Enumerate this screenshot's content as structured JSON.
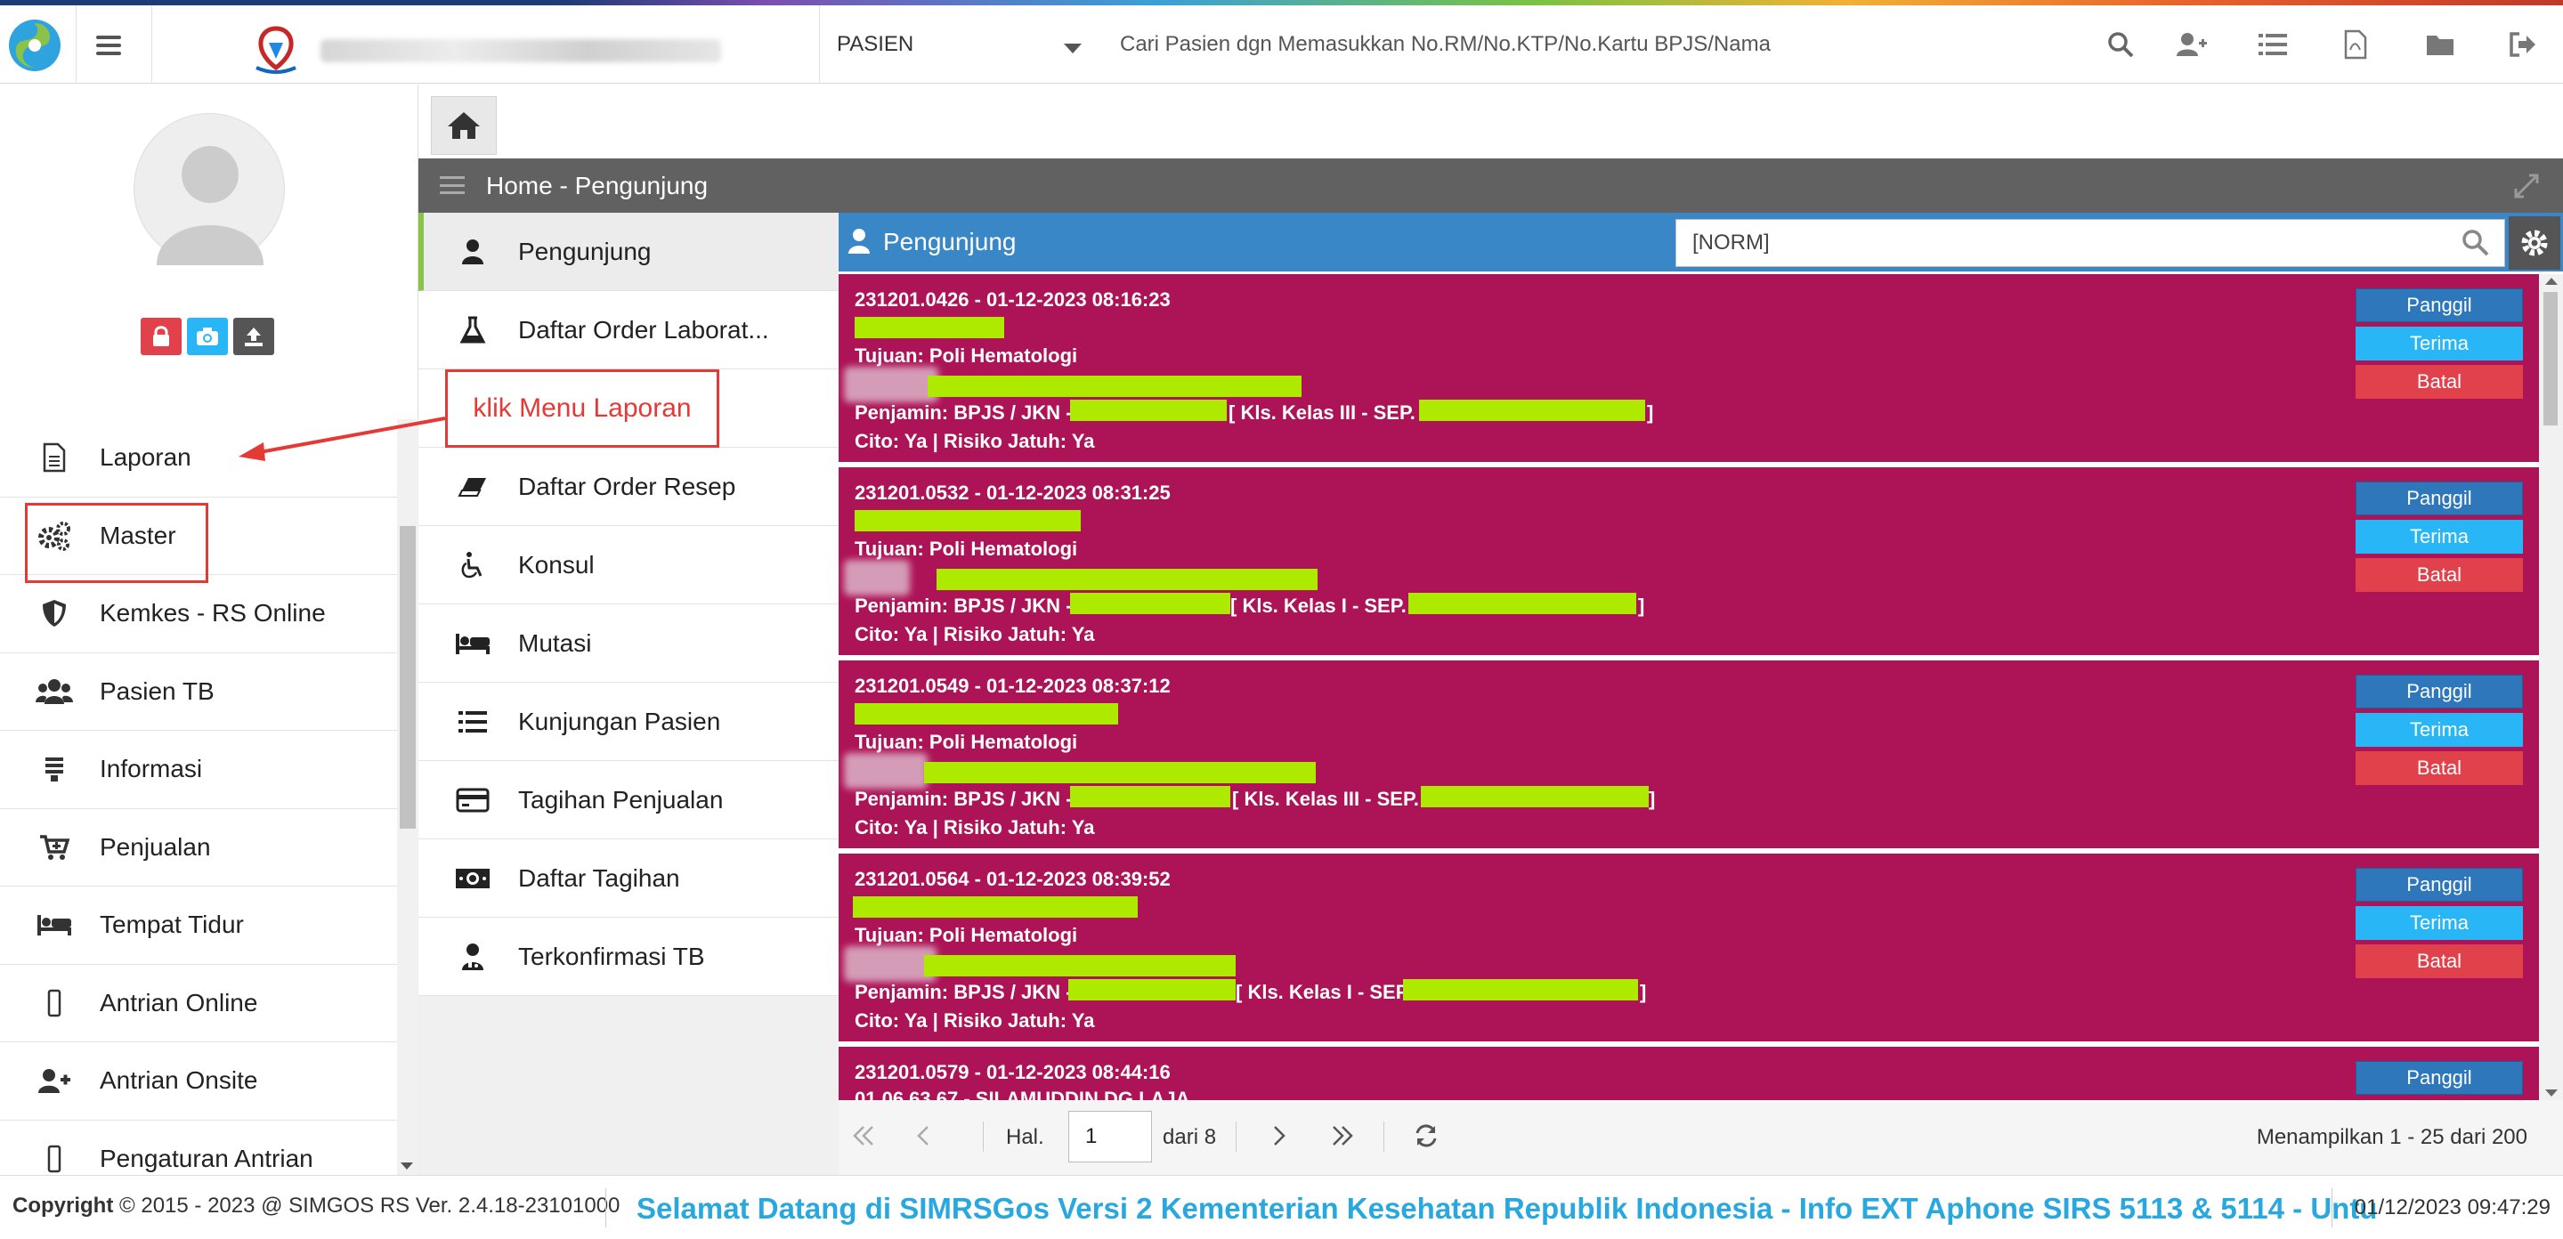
{
  "topbar": {
    "search_type": "PASIEN",
    "search_placeholder": "Cari Pasien dgn Memasukkan No.RM/No.KTP/No.Kartu BPJS/Nama",
    "icons": [
      "search-icon",
      "add-user-icon",
      "list-icon",
      "pdf-icon",
      "folder-icon",
      "logout-icon"
    ]
  },
  "sidebar": {
    "menu": [
      {
        "label": "Laporan",
        "icon": "report-icon"
      },
      {
        "label": "Master",
        "icon": "cogs-icon"
      },
      {
        "label": "Kemkes - RS Online",
        "icon": "shield-icon"
      },
      {
        "label": "Pasien TB",
        "icon": "users-icon"
      },
      {
        "label": "Informasi",
        "icon": "info-list-icon"
      },
      {
        "label": "Penjualan",
        "icon": "cart-icon"
      },
      {
        "label": "Tempat Tidur",
        "icon": "bed-icon"
      },
      {
        "label": "Antrian Online",
        "icon": "mobile-icon"
      },
      {
        "label": "Antrian Onsite",
        "icon": "user-plus-icon"
      },
      {
        "label": "Pengaturan Antrian",
        "icon": "mobile-icon"
      }
    ]
  },
  "annotation": {
    "text": "klik Menu Laporan"
  },
  "panel": {
    "title": "Home - Pengunjung"
  },
  "submenu": [
    {
      "label": "Pengunjung",
      "icon": "user-icon",
      "active": true
    },
    {
      "label": "Daftar Order Laborat...",
      "icon": "flask-icon",
      "active": false
    },
    {
      "label": "",
      "icon": "",
      "active": false
    },
    {
      "label": "Daftar Order Resep",
      "icon": "eraser-icon",
      "active": false
    },
    {
      "label": "Konsul",
      "icon": "wheelchair-icon",
      "active": false
    },
    {
      "label": "Mutasi",
      "icon": "bed-icon",
      "active": false
    },
    {
      "label": "Kunjungan Pasien",
      "icon": "list-icon",
      "active": false
    },
    {
      "label": "Tagihan Penjualan",
      "icon": "credit-card-icon",
      "active": false
    },
    {
      "label": "Daftar Tagihan",
      "icon": "money-icon",
      "active": false
    },
    {
      "label": "Terkonfirmasi TB",
      "icon": "user-doctor-icon",
      "active": false
    }
  ],
  "list": {
    "title": "Pengunjung",
    "filter_value": "[NORM]",
    "buttons": {
      "panggil": "Panggil",
      "terima": "Terima",
      "batal": "Batal"
    },
    "cards": [
      {
        "header": "231201.0426 - 01-12-2023 08:16:23",
        "tujuan": "Tujuan: Poli Hematologi",
        "penjamin_prefix": "Penjamin: BPJS / JKN -",
        "kelas": "[ Kls. Kelas III - SEP.",
        "close": "]",
        "cito": "Cito: Ya | Risiko Jatuh: Ya"
      },
      {
        "header": "231201.0532 - 01-12-2023 08:31:25",
        "tujuan": "Tujuan: Poli Hematologi",
        "penjamin_prefix": "Penjamin: BPJS / JKN -",
        "kelas": "[ Kls. Kelas I - SEP.",
        "close": "]",
        "cito": "Cito: Ya | Risiko Jatuh: Ya"
      },
      {
        "header": "231201.0549 - 01-12-2023 08:37:12",
        "tujuan": "Tujuan: Poli Hematologi",
        "penjamin_prefix": "Penjamin: BPJS / JKN -",
        "kelas": "[ Kls. Kelas III - SEP.",
        "close": "]",
        "cito": "Cito: Ya | Risiko Jatuh: Ya"
      },
      {
        "header": "231201.0564 - 01-12-2023 08:39:52",
        "tujuan": "Tujuan: Poli Hematologi",
        "penjamin_prefix": "Penjamin: BPJS / JKN -",
        "kelas": "[ Kls. Kelas I - SEP.",
        "close": "]",
        "cito": "Cito: Ya | Risiko Jatuh: Ya"
      },
      {
        "header": "231201.0579 - 01-12-2023 08:44:16",
        "second": "01.06.63.67 - SILAMUDDIN DG LAJA"
      }
    ]
  },
  "pager": {
    "hal_label": "Hal.",
    "page": "1",
    "of_label": "dari 8",
    "info": "Menampilkan 1 - 25 dari 200"
  },
  "footer": {
    "copyright_prefix": "Copyright",
    "copyright_text": "2015 - 2023 @ SIMGOS RS Ver. 2.4.18-23101000",
    "marquee": "Selamat Datang di SIMRSGos Versi 2 Kementerian Kesehatan Republik Indonesia - Info EXT Aphone SIRS 5113 & 5114 - Untu",
    "datetime": "01/12/2023 09:47:29"
  },
  "colors": {
    "card_bg": "#ad1457",
    "list_header": "#3a87c7",
    "panel_header": "#616161",
    "redacted": "#aeea00",
    "annotation": "#e53935",
    "marquee_text": "#29a8e0"
  }
}
